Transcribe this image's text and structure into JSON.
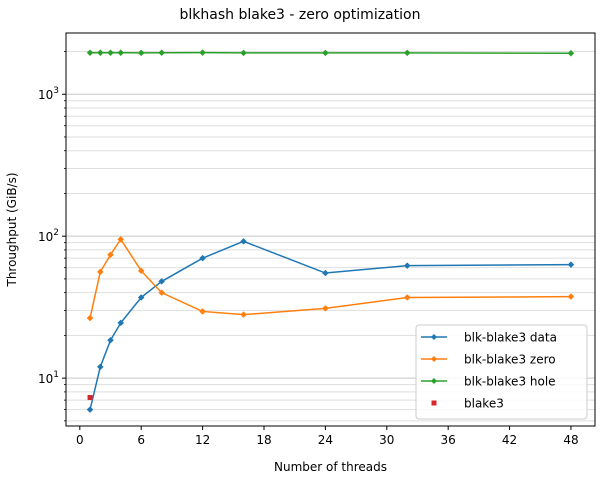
{
  "chart_data": {
    "type": "line",
    "title": "blkhash blake3 - zero optimization",
    "xlabel": "Number of threads",
    "ylabel": "Throughput (GiB/s)",
    "xlim": [
      -1.35,
      50.35
    ],
    "ylim": [
      4.6,
      2700
    ],
    "yscale": "log",
    "grid": "y-major-and-minor",
    "legend_position": "bottom-right",
    "x_ticks": [
      0,
      6,
      12,
      18,
      24,
      30,
      36,
      42,
      48
    ],
    "y_ticks": [
      {
        "value": 10,
        "base": "10",
        "exp": "1"
      },
      {
        "value": 100,
        "base": "10",
        "exp": "2"
      },
      {
        "value": 1000,
        "base": "10",
        "exp": "3"
      }
    ],
    "series": [
      {
        "name": "blk-blake3 data",
        "color": "#1f77b4",
        "marker": "diamond",
        "x": [
          1,
          2,
          3,
          4,
          6,
          8,
          12,
          16,
          24,
          32,
          48
        ],
        "y": [
          6.0,
          12.0,
          18.5,
          24.5,
          37.0,
          48.0,
          70.0,
          92.0,
          55.0,
          62.0,
          63.0
        ]
      },
      {
        "name": "blk-blake3 zero",
        "color": "#ff7f0e",
        "marker": "diamond",
        "x": [
          1,
          2,
          3,
          4,
          6,
          8,
          12,
          16,
          24,
          32,
          48
        ],
        "y": [
          26.5,
          56.0,
          74.0,
          95.0,
          57.0,
          40.0,
          29.5,
          28.0,
          31.0,
          37.0,
          37.5
        ]
      },
      {
        "name": "blk-blake3 hole",
        "color": "#2ca02c",
        "marker": "diamond",
        "x": [
          1,
          2,
          3,
          4,
          6,
          8,
          12,
          16,
          24,
          32,
          48
        ],
        "y": [
          1960,
          1960,
          1960,
          1960,
          1955,
          1960,
          1965,
          1955,
          1955,
          1955,
          1945
        ]
      },
      {
        "name": "blake3",
        "color": "#d62728",
        "marker": "square",
        "x": [
          1
        ],
        "y": [
          7.3
        ]
      }
    ]
  }
}
